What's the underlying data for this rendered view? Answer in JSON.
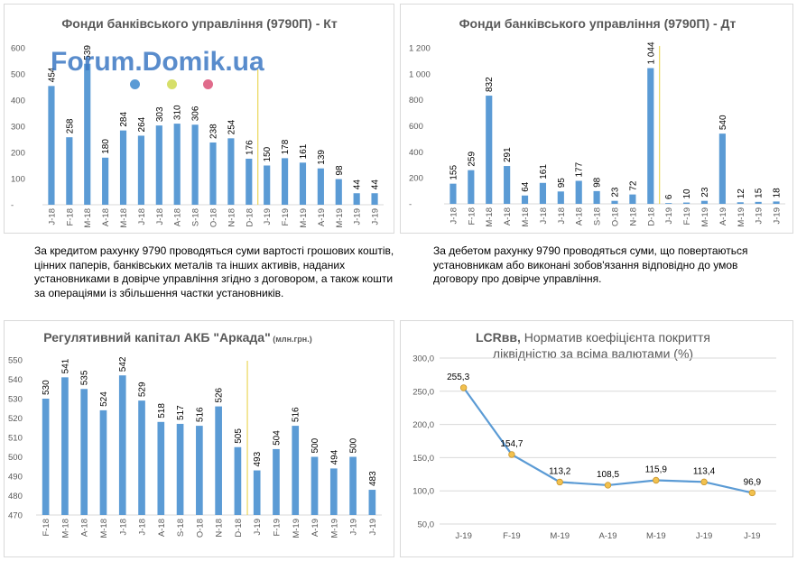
{
  "watermark": {
    "text": "Forum.Domik.ua",
    "dot_colors": [
      "#5a9bd5",
      "#d6df6a",
      "#e06b8b"
    ]
  },
  "colors": {
    "bar": "#5b9bd5",
    "line": "#5b9bd5",
    "marker": "#f2c14e",
    "marker_edge": "#c9952c",
    "divider": "#e6cf3a",
    "grid": "#d9d9d9",
    "text": "#595959"
  },
  "chart_data": [
    {
      "id": "kt",
      "type": "bar",
      "title": "Фонди банківського управління (9790П) - Кт",
      "categories": [
        "J-18",
        "F-18",
        "M-18",
        "A-18",
        "M-18",
        "J-18",
        "J-18",
        "A-18",
        "S-18",
        "O-18",
        "N-18",
        "D-18",
        "J-19",
        "F-19",
        "M-19",
        "A-19",
        "M-19",
        "J-19",
        "J-19"
      ],
      "values": [
        454,
        258,
        539,
        180,
        284,
        264,
        303,
        310,
        306,
        238,
        254,
        176,
        150,
        178,
        161,
        139,
        98,
        44,
        44
      ],
      "value_labels": [
        "454",
        "258",
        "539",
        "180",
        "284",
        "264",
        "303",
        "310",
        "306",
        "238",
        "254",
        "176",
        "150",
        "178",
        "161",
        "139",
        "98",
        "44",
        "44"
      ],
      "ylim": [
        0,
        600
      ],
      "yticks": [
        0,
        100,
        200,
        300,
        400,
        500,
        600
      ],
      "ytick_labels": [
        "-",
        "100",
        "200",
        "300",
        "400",
        "500",
        "600"
      ],
      "divider_after_index": 11,
      "grid": false
    },
    {
      "id": "dt",
      "type": "bar",
      "title": "Фонди банківського управління (9790П) - Дт",
      "categories": [
        "J-18",
        "F-18",
        "M-18",
        "A-18",
        "M-18",
        "J-18",
        "J-18",
        "A-18",
        "S-18",
        "O-18",
        "N-18",
        "D-18",
        "J-19",
        "F-19",
        "M-19",
        "A-19",
        "M-19",
        "J-19",
        "J-19"
      ],
      "values": [
        155,
        259,
        832,
        291,
        64,
        161,
        95,
        177,
        98,
        23,
        72,
        1044,
        6,
        10,
        23,
        540,
        12,
        15,
        18
      ],
      "value_labels": [
        "155",
        "259",
        "832",
        "291",
        "64",
        "161",
        "95",
        "177",
        "98",
        "23",
        "72",
        "1 044",
        "6",
        "10",
        "23",
        "540",
        "12",
        "15",
        "18"
      ],
      "ylim": [
        0,
        1200
      ],
      "yticks": [
        0,
        200,
        400,
        600,
        800,
        1000,
        1200
      ],
      "ytick_labels": [
        "-",
        "200",
        "400",
        "600",
        "800",
        "1 000",
        "1 200"
      ],
      "divider_after_index": 11,
      "grid": false
    },
    {
      "id": "capital",
      "type": "bar",
      "title": "Регулятивний капітал АКБ \"Аркада\"",
      "title_suffix": "(млн.грн.)",
      "categories": [
        "F-18",
        "M-18",
        "A-18",
        "M-18",
        "J-18",
        "J-18",
        "A-18",
        "S-18",
        "O-18",
        "N-18",
        "D-18",
        "J-19",
        "F-19",
        "M-19",
        "A-19",
        "M-19",
        "J-19",
        "J-19"
      ],
      "values": [
        530,
        541,
        535,
        524,
        542,
        529,
        518,
        517,
        516,
        526,
        505,
        493,
        504,
        516,
        500,
        494,
        500,
        483
      ],
      "value_labels": [
        "530",
        "541",
        "535",
        "524",
        "542",
        "529",
        "518",
        "517",
        "516",
        "526",
        "505",
        "493",
        "504",
        "516",
        "500",
        "494",
        "500",
        "483"
      ],
      "ylim": [
        470,
        550
      ],
      "yticks": [
        470,
        480,
        490,
        500,
        510,
        520,
        530,
        540,
        550
      ],
      "ytick_labels": [
        "470",
        "480",
        "490",
        "500",
        "510",
        "520",
        "530",
        "540",
        "550"
      ],
      "divider_after_index": 10,
      "grid": false
    },
    {
      "id": "lcr",
      "type": "line",
      "title_bold": "LCRвв,",
      "title_rest": " Норматив коефіцієнта покриття",
      "title_line2": "ліквідністю за всіма валютами (%)",
      "categories": [
        "J-19",
        "F-19",
        "M-19",
        "A-19",
        "M-19",
        "J-19",
        "J-19"
      ],
      "values": [
        255.3,
        154.7,
        113.2,
        108.5,
        115.9,
        113.4,
        96.9
      ],
      "value_labels": [
        "255,3",
        "154,7",
        "113,2",
        "108,5",
        "115,9",
        "113,4",
        "96,9"
      ],
      "ylim": [
        50,
        300
      ],
      "yticks": [
        50,
        100,
        150,
        200,
        250,
        300
      ],
      "ytick_labels": [
        "50,0",
        "100,0",
        "150,0",
        "200,0",
        "250,0",
        "300,0"
      ],
      "grid": true
    }
  ],
  "descriptions": {
    "kt": "За кредитом рахунку 9790 проводяться суми вартості грошових коштів, цінних паперів, банківських металів та інших активів, наданих установниками в довірче управління згідно з договором, а також кошти за операціями із збільшення частки установників.",
    "dt": "За дебетом рахунку 9790 проводяться суми, що повертаються установникам або виконані зобов'язання відповідно до умов договору про довірче управління."
  }
}
